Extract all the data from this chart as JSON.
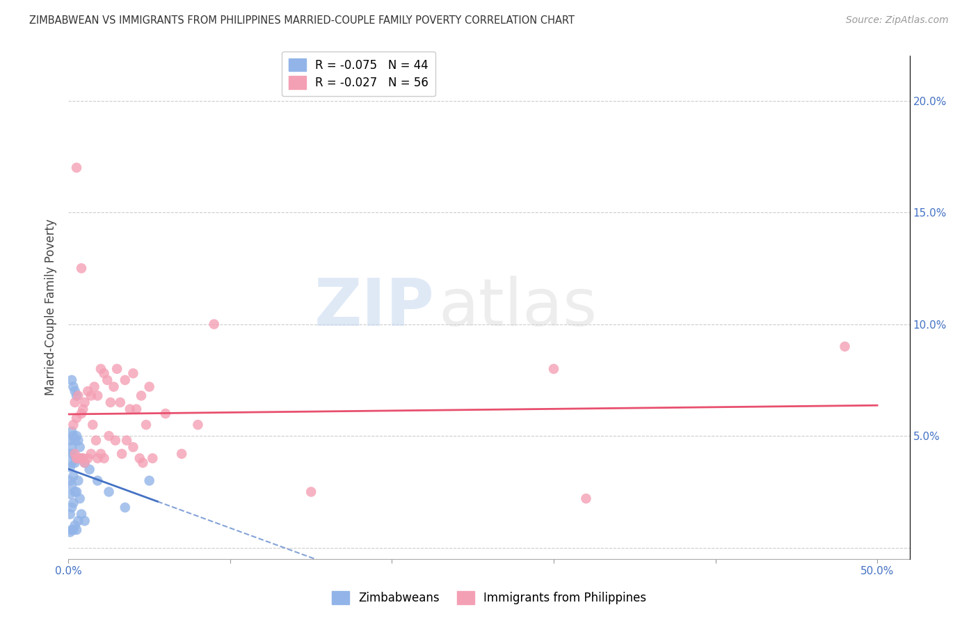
{
  "title": "ZIMBABWEAN VS IMMIGRANTS FROM PHILIPPINES MARRIED-COUPLE FAMILY POVERTY CORRELATION CHART",
  "source": "Source: ZipAtlas.com",
  "ylabel": "Married-Couple Family Poverty",
  "xlim": [
    0.0,
    0.52
  ],
  "ylim": [
    -0.005,
    0.22
  ],
  "legend_R1": "R = -0.075",
  "legend_N1": "N = 44",
  "legend_R2": "R = -0.027",
  "legend_N2": "N = 56",
  "legend_label1": "Zimbabweans",
  "legend_label2": "Immigrants from Philippines",
  "color_blue": "#92b4e8",
  "color_pink": "#f4a0b4",
  "color_blue_line": "#4472c4",
  "color_pink_line": "#e8506e",
  "blue_x": [
    0.001,
    0.001,
    0.001,
    0.001,
    0.001,
    0.001,
    0.001,
    0.002,
    0.002,
    0.002,
    0.002,
    0.002,
    0.002,
    0.003,
    0.003,
    0.003,
    0.003,
    0.003,
    0.004,
    0.004,
    0.004,
    0.004,
    0.005,
    0.005,
    0.005,
    0.005,
    0.006,
    0.006,
    0.006,
    0.007,
    0.007,
    0.008,
    0.008,
    0.01,
    0.01,
    0.013,
    0.018,
    0.025,
    0.035,
    0.05,
    0.002,
    0.003,
    0.004,
    0.005
  ],
  "blue_y": [
    0.048,
    0.042,
    0.036,
    0.03,
    0.024,
    0.015,
    0.007,
    0.052,
    0.045,
    0.038,
    0.028,
    0.018,
    0.008,
    0.05,
    0.042,
    0.032,
    0.02,
    0.008,
    0.048,
    0.038,
    0.025,
    0.01,
    0.05,
    0.04,
    0.025,
    0.008,
    0.048,
    0.03,
    0.012,
    0.045,
    0.022,
    0.04,
    0.015,
    0.038,
    0.012,
    0.035,
    0.03,
    0.025,
    0.018,
    0.03,
    0.075,
    0.072,
    0.07,
    0.068
  ],
  "pink_x": [
    0.003,
    0.004,
    0.004,
    0.005,
    0.005,
    0.006,
    0.006,
    0.008,
    0.008,
    0.009,
    0.009,
    0.01,
    0.01,
    0.012,
    0.012,
    0.014,
    0.014,
    0.015,
    0.016,
    0.017,
    0.018,
    0.018,
    0.02,
    0.02,
    0.022,
    0.022,
    0.024,
    0.025,
    0.026,
    0.028,
    0.029,
    0.03,
    0.032,
    0.033,
    0.035,
    0.036,
    0.038,
    0.04,
    0.04,
    0.042,
    0.044,
    0.045,
    0.046,
    0.048,
    0.05,
    0.052,
    0.06,
    0.07,
    0.08,
    0.09,
    0.15,
    0.3,
    0.32,
    0.48,
    0.005,
    0.008
  ],
  "pink_y": [
    0.055,
    0.065,
    0.042,
    0.058,
    0.04,
    0.068,
    0.04,
    0.06,
    0.04,
    0.062,
    0.04,
    0.065,
    0.038,
    0.07,
    0.04,
    0.068,
    0.042,
    0.055,
    0.072,
    0.048,
    0.068,
    0.04,
    0.08,
    0.042,
    0.078,
    0.04,
    0.075,
    0.05,
    0.065,
    0.072,
    0.048,
    0.08,
    0.065,
    0.042,
    0.075,
    0.048,
    0.062,
    0.078,
    0.045,
    0.062,
    0.04,
    0.068,
    0.038,
    0.055,
    0.072,
    0.04,
    0.06,
    0.042,
    0.055,
    0.1,
    0.025,
    0.08,
    0.022,
    0.09,
    0.17,
    0.125
  ],
  "watermark_zip": "ZIP",
  "watermark_atlas": "atlas"
}
